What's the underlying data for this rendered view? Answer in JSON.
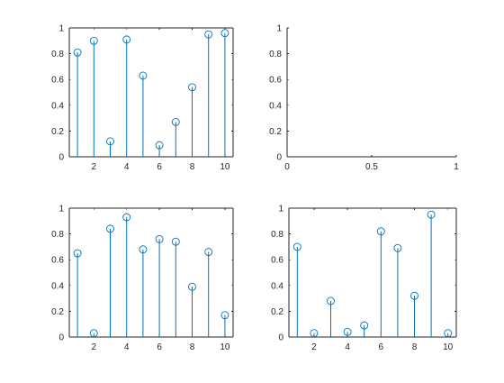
{
  "chart_data": [
    {
      "type": "stem",
      "position": "top-left",
      "x": [
        1,
        2,
        3,
        4,
        5,
        6,
        7,
        8,
        9,
        10
      ],
      "values": [
        0.81,
        0.9,
        0.12,
        0.91,
        0.63,
        0.09,
        0.27,
        0.54,
        0.95,
        0.96
      ],
      "xlim": [
        0.5,
        10.5
      ],
      "ylim": [
        0,
        1
      ],
      "xticks": [
        2,
        4,
        6,
        8,
        10
      ],
      "yticks": [
        0,
        0.2,
        0.4,
        0.6,
        0.8,
        1
      ],
      "xticklabels": [
        "2",
        "4",
        "6",
        "8",
        "10"
      ],
      "yticklabels": [
        "0",
        "0.2",
        "0.4",
        "0.6",
        "0.8",
        "1"
      ],
      "box": true,
      "color": "#0072BD"
    },
    {
      "type": "empty",
      "position": "top-right",
      "x": [],
      "values": [],
      "xlim": [
        0,
        1
      ],
      "ylim": [
        0,
        1
      ],
      "xticks": [
        0,
        0.5,
        1
      ],
      "yticks": [
        0,
        0.2,
        0.4,
        0.6,
        0.8,
        1
      ],
      "xticklabels": [
        "0",
        "0.5",
        "1"
      ],
      "yticklabels": [
        "0",
        "0.2",
        "0.4",
        "0.6",
        "0.8",
        "1"
      ],
      "box": false,
      "color": "#0072BD"
    },
    {
      "type": "stem",
      "position": "bottom-left",
      "x": [
        1,
        2,
        3,
        4,
        5,
        6,
        7,
        8,
        9,
        10
      ],
      "values": [
        0.65,
        0.03,
        0.84,
        0.93,
        0.68,
        0.76,
        0.74,
        0.39,
        0.66,
        0.17
      ],
      "xlim": [
        0.5,
        10.5
      ],
      "ylim": [
        0,
        1
      ],
      "xticks": [
        2,
        4,
        6,
        8,
        10
      ],
      "yticks": [
        0,
        0.2,
        0.4,
        0.6,
        0.8,
        1
      ],
      "xticklabels": [
        "2",
        "4",
        "6",
        "8",
        "10"
      ],
      "yticklabels": [
        "0",
        "0.2",
        "0.4",
        "0.6",
        "0.8",
        "1"
      ],
      "box": true,
      "color": "#0072BD"
    },
    {
      "type": "stem",
      "position": "bottom-right",
      "x": [
        1,
        2,
        3,
        4,
        5,
        6,
        7,
        8,
        9,
        10
      ],
      "values": [
        0.7,
        0.03,
        0.28,
        0.04,
        0.09,
        0.82,
        0.69,
        0.32,
        0.95,
        0.03
      ],
      "xlim": [
        0.5,
        10.5
      ],
      "ylim": [
        0,
        1
      ],
      "xticks": [
        2,
        4,
        6,
        8,
        10
      ],
      "yticks": [
        0,
        0.2,
        0.4,
        0.6,
        0.8,
        1
      ],
      "xticklabels": [
        "2",
        "4",
        "6",
        "8",
        "10"
      ],
      "yticklabels": [
        "0",
        "0.2",
        "0.4",
        "0.6",
        "0.8",
        "1"
      ],
      "box": true,
      "color": "#0072BD"
    }
  ]
}
